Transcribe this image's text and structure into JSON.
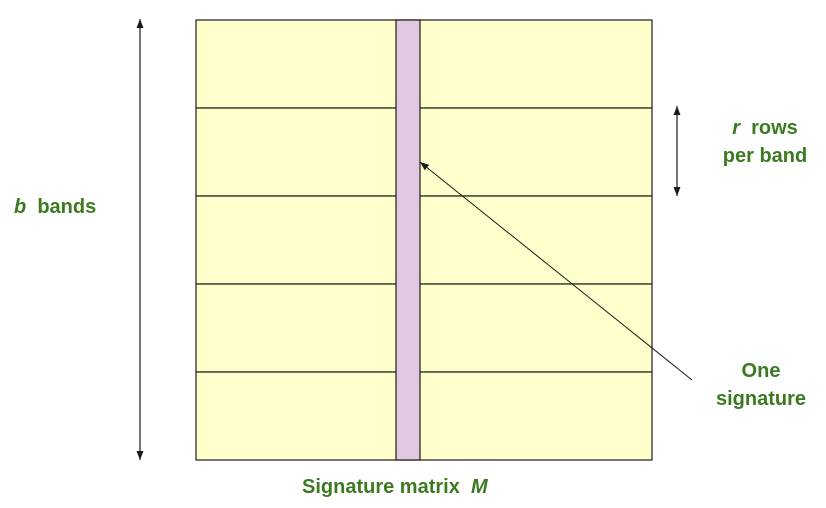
{
  "colors": {
    "band_fill": "#ffffcc",
    "signature_fill": "#e0c8e0",
    "line": "#1a1a1a",
    "label": "#3c7a22"
  },
  "matrix": {
    "band_count": 5,
    "caption_text": "Signature matrix",
    "caption_var": "M"
  },
  "labels": {
    "bands_var": "b",
    "bands_text": "bands",
    "rows_var": "r",
    "rows_text": "rows",
    "rows_line2": "per band",
    "signature_line1": "One",
    "signature_line2": "signature"
  }
}
